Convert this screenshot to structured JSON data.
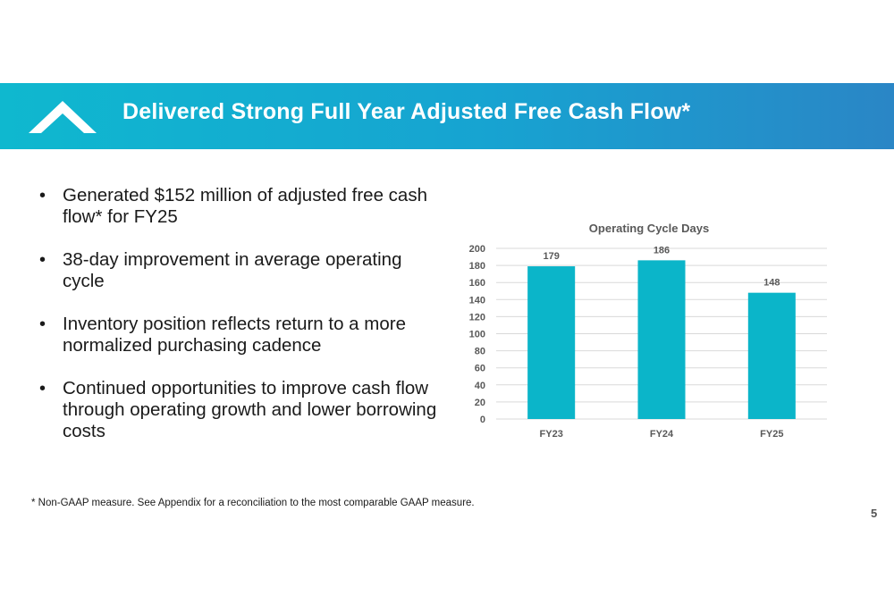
{
  "slide": {
    "title": "Delivered Strong Full Year Adjusted Free Cash Flow*",
    "logo_icon": "chevron-up-logo-icon",
    "bullets": [
      "Generated $152 million of adjusted free cash flow* for FY25",
      "38-day improvement in average operating cycle",
      "Inventory position reflects return to a more normalized purchasing cadence",
      "Continued opportunities to improve cash flow through operating growth and lower borrowing costs"
    ],
    "footnote": "* Non-GAAP measure. See Appendix for a reconciliation to the most comparable GAAP measure.",
    "page_number": "5",
    "colors": {
      "banner_start": "#0fb8cf",
      "banner_end": "#2a86c6",
      "bar": "#0bb5c9"
    }
  },
  "chart_data": {
    "type": "bar",
    "title": "Operating Cycle Days",
    "categories": [
      "FY23",
      "FY24",
      "FY25"
    ],
    "values": [
      179,
      186,
      148
    ],
    "data_labels": [
      "179",
      "186",
      "148"
    ],
    "ylim": [
      0,
      200
    ],
    "yticks": [
      0,
      20,
      40,
      60,
      80,
      100,
      120,
      140,
      160,
      180,
      200
    ],
    "grid": true,
    "legend": "none",
    "xlabel": "",
    "ylabel": ""
  }
}
